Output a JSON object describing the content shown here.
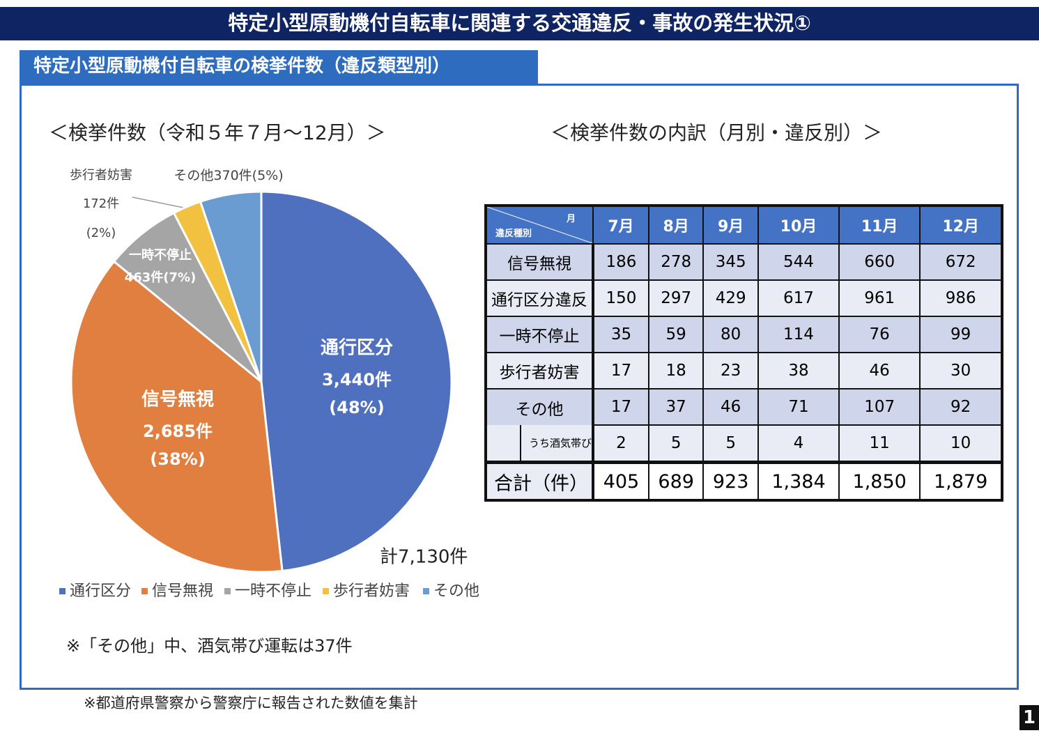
{
  "header": {
    "title": "特定小型原動機付自転車に関連する交通違反・事故の発生状況①",
    "subtitle": "特定小型原動機付自転車の検挙件数（違反類型別）",
    "page_number": "1"
  },
  "chart_data": {
    "type": "pie",
    "title": "＜検挙件数（令和５年７月～12月）＞",
    "categories": [
      "通行区分",
      "信号無視",
      "一時不停止",
      "歩行者妨害",
      "その他"
    ],
    "values": [
      3440,
      2685,
      463,
      172,
      370
    ],
    "value_labels": [
      "3,440件",
      "2,685件",
      "463件",
      "172件",
      "370件"
    ],
    "percents": [
      48,
      38,
      7,
      2,
      5
    ],
    "percent_labels": [
      "(48%)",
      "(38%)",
      "(7%)",
      "(2%)",
      "(5%)"
    ],
    "colors": [
      "#4f6fbf",
      "#e07f3f",
      "#a5a5a5",
      "#f2c13f",
      "#6a9bd1"
    ],
    "total_label": "計7,130件",
    "legend": "bottom"
  },
  "table": {
    "title": "＜検挙件数の内訳（月別・違反別）＞",
    "corner_top": "月",
    "corner_bottom": "違反種別",
    "columns": [
      "7月",
      "8月",
      "9月",
      "10月",
      "11月",
      "12月"
    ],
    "rows": [
      {
        "label": "信号無視",
        "cells": [
          186,
          278,
          345,
          544,
          660,
          672
        ]
      },
      {
        "label": "通行区分違反",
        "cells": [
          150,
          297,
          429,
          617,
          961,
          986
        ]
      },
      {
        "label": "一時不停止",
        "cells": [
          35,
          59,
          80,
          114,
          76,
          99
        ]
      },
      {
        "label": "歩行者妨害",
        "cells": [
          17,
          18,
          23,
          38,
          46,
          30
        ]
      },
      {
        "label": "その他",
        "cells": [
          17,
          37,
          46,
          71,
          107,
          92
        ]
      },
      {
        "label": "うち酒気帯び",
        "cells": [
          2,
          5,
          5,
          4,
          11,
          10
        ]
      },
      {
        "label": "合計（件）",
        "cells": [
          "405",
          "689",
          "923",
          "1,384",
          "1,850",
          "1,879"
        ]
      }
    ]
  },
  "notes": {
    "drunk": "※「その他」中、酒気帯び運転は37件",
    "source": "※都道府県警察から警察庁に報告された数値を集計"
  }
}
